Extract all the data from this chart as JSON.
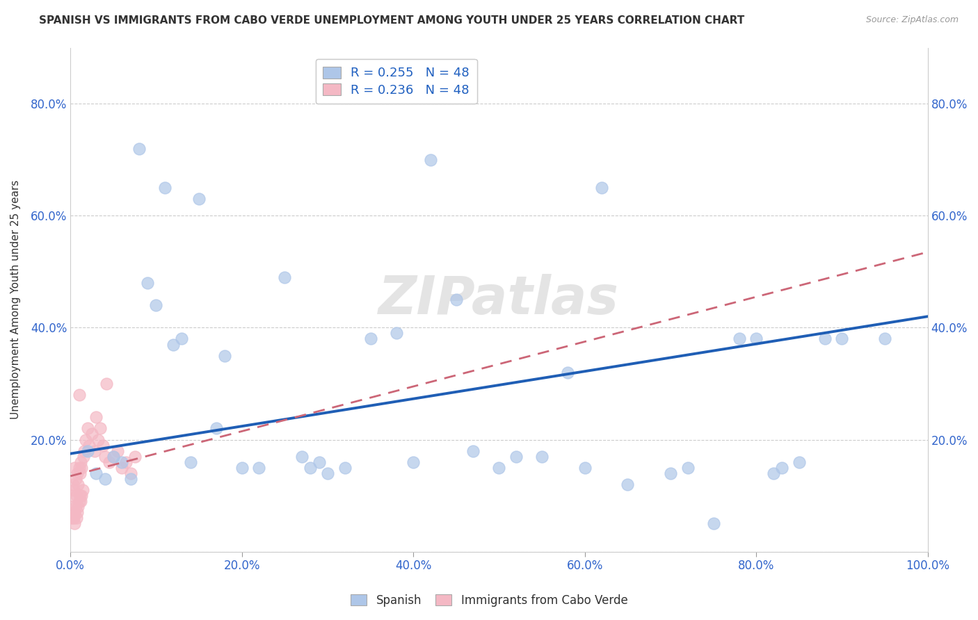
{
  "title": "SPANISH VS IMMIGRANTS FROM CABO VERDE UNEMPLOYMENT AMONG YOUTH UNDER 25 YEARS CORRELATION CHART",
  "source": "Source: ZipAtlas.com",
  "ylabel": "Unemployment Among Youth under 25 years",
  "watermark": "ZIPatlas",
  "legend_bottom": [
    "Spanish",
    "Immigrants from Cabo Verde"
  ],
  "legend_top_labels": [
    "R = 0.255   N = 48",
    "R = 0.236   N = 48"
  ],
  "spanish_color": "#aec6e8",
  "cabo_color": "#f4b8c4",
  "spanish_line_color": "#1f5eb5",
  "cabo_line_color": "#cc6677",
  "spanish_x": [
    0.02,
    0.03,
    0.04,
    0.05,
    0.06,
    0.07,
    0.08,
    0.09,
    0.1,
    0.11,
    0.12,
    0.13,
    0.14,
    0.15,
    0.17,
    0.18,
    0.2,
    0.22,
    0.25,
    0.27,
    0.28,
    0.29,
    0.3,
    0.32,
    0.35,
    0.38,
    0.4,
    0.42,
    0.45,
    0.47,
    0.5,
    0.52,
    0.55,
    0.58,
    0.6,
    0.62,
    0.65,
    0.7,
    0.72,
    0.75,
    0.78,
    0.8,
    0.82,
    0.83,
    0.85,
    0.88,
    0.9,
    0.95
  ],
  "spanish_y": [
    0.18,
    0.14,
    0.13,
    0.17,
    0.16,
    0.13,
    0.72,
    0.48,
    0.44,
    0.65,
    0.37,
    0.38,
    0.16,
    0.63,
    0.22,
    0.35,
    0.15,
    0.15,
    0.49,
    0.17,
    0.15,
    0.16,
    0.14,
    0.15,
    0.38,
    0.39,
    0.16,
    0.7,
    0.45,
    0.18,
    0.15,
    0.17,
    0.17,
    0.32,
    0.15,
    0.65,
    0.12,
    0.14,
    0.15,
    0.05,
    0.38,
    0.38,
    0.14,
    0.15,
    0.16,
    0.38,
    0.38,
    0.38
  ],
  "cabo_x": [
    0.001,
    0.002,
    0.002,
    0.003,
    0.003,
    0.004,
    0.004,
    0.005,
    0.005,
    0.006,
    0.006,
    0.007,
    0.007,
    0.008,
    0.008,
    0.009,
    0.009,
    0.01,
    0.01,
    0.011,
    0.011,
    0.012,
    0.012,
    0.013,
    0.013,
    0.014,
    0.015,
    0.016,
    0.018,
    0.02,
    0.022,
    0.025,
    0.028,
    0.03,
    0.032,
    0.035,
    0.038,
    0.04,
    0.042,
    0.045,
    0.05,
    0.055,
    0.06,
    0.065,
    0.07,
    0.075,
    0.005,
    0.01
  ],
  "cabo_y": [
    0.06,
    0.08,
    0.1,
    0.06,
    0.12,
    0.06,
    0.11,
    0.07,
    0.15,
    0.08,
    0.13,
    0.06,
    0.1,
    0.07,
    0.14,
    0.08,
    0.12,
    0.09,
    0.15,
    0.1,
    0.14,
    0.09,
    0.16,
    0.1,
    0.15,
    0.11,
    0.17,
    0.18,
    0.2,
    0.22,
    0.19,
    0.21,
    0.18,
    0.24,
    0.2,
    0.22,
    0.19,
    0.17,
    0.3,
    0.16,
    0.17,
    0.18,
    0.15,
    0.16,
    0.14,
    0.17,
    0.05,
    0.28
  ],
  "xlim": [
    0.0,
    1.0
  ],
  "ylim": [
    0.0,
    0.9
  ],
  "xticks": [
    0.0,
    0.2,
    0.4,
    0.6,
    0.8,
    1.0
  ],
  "yticks": [
    0.0,
    0.2,
    0.4,
    0.6,
    0.8
  ],
  "xtick_labels": [
    "0.0%",
    "20.0%",
    "40.0%",
    "60.0%",
    "80.0%",
    "100.0%"
  ],
  "ytick_labels": [
    "",
    "20.0%",
    "40.0%",
    "60.0%",
    "80.0%"
  ],
  "background_color": "#ffffff",
  "grid_color": "#cccccc",
  "tick_color": "#3366cc",
  "title_color": "#333333",
  "source_color": "#999999"
}
